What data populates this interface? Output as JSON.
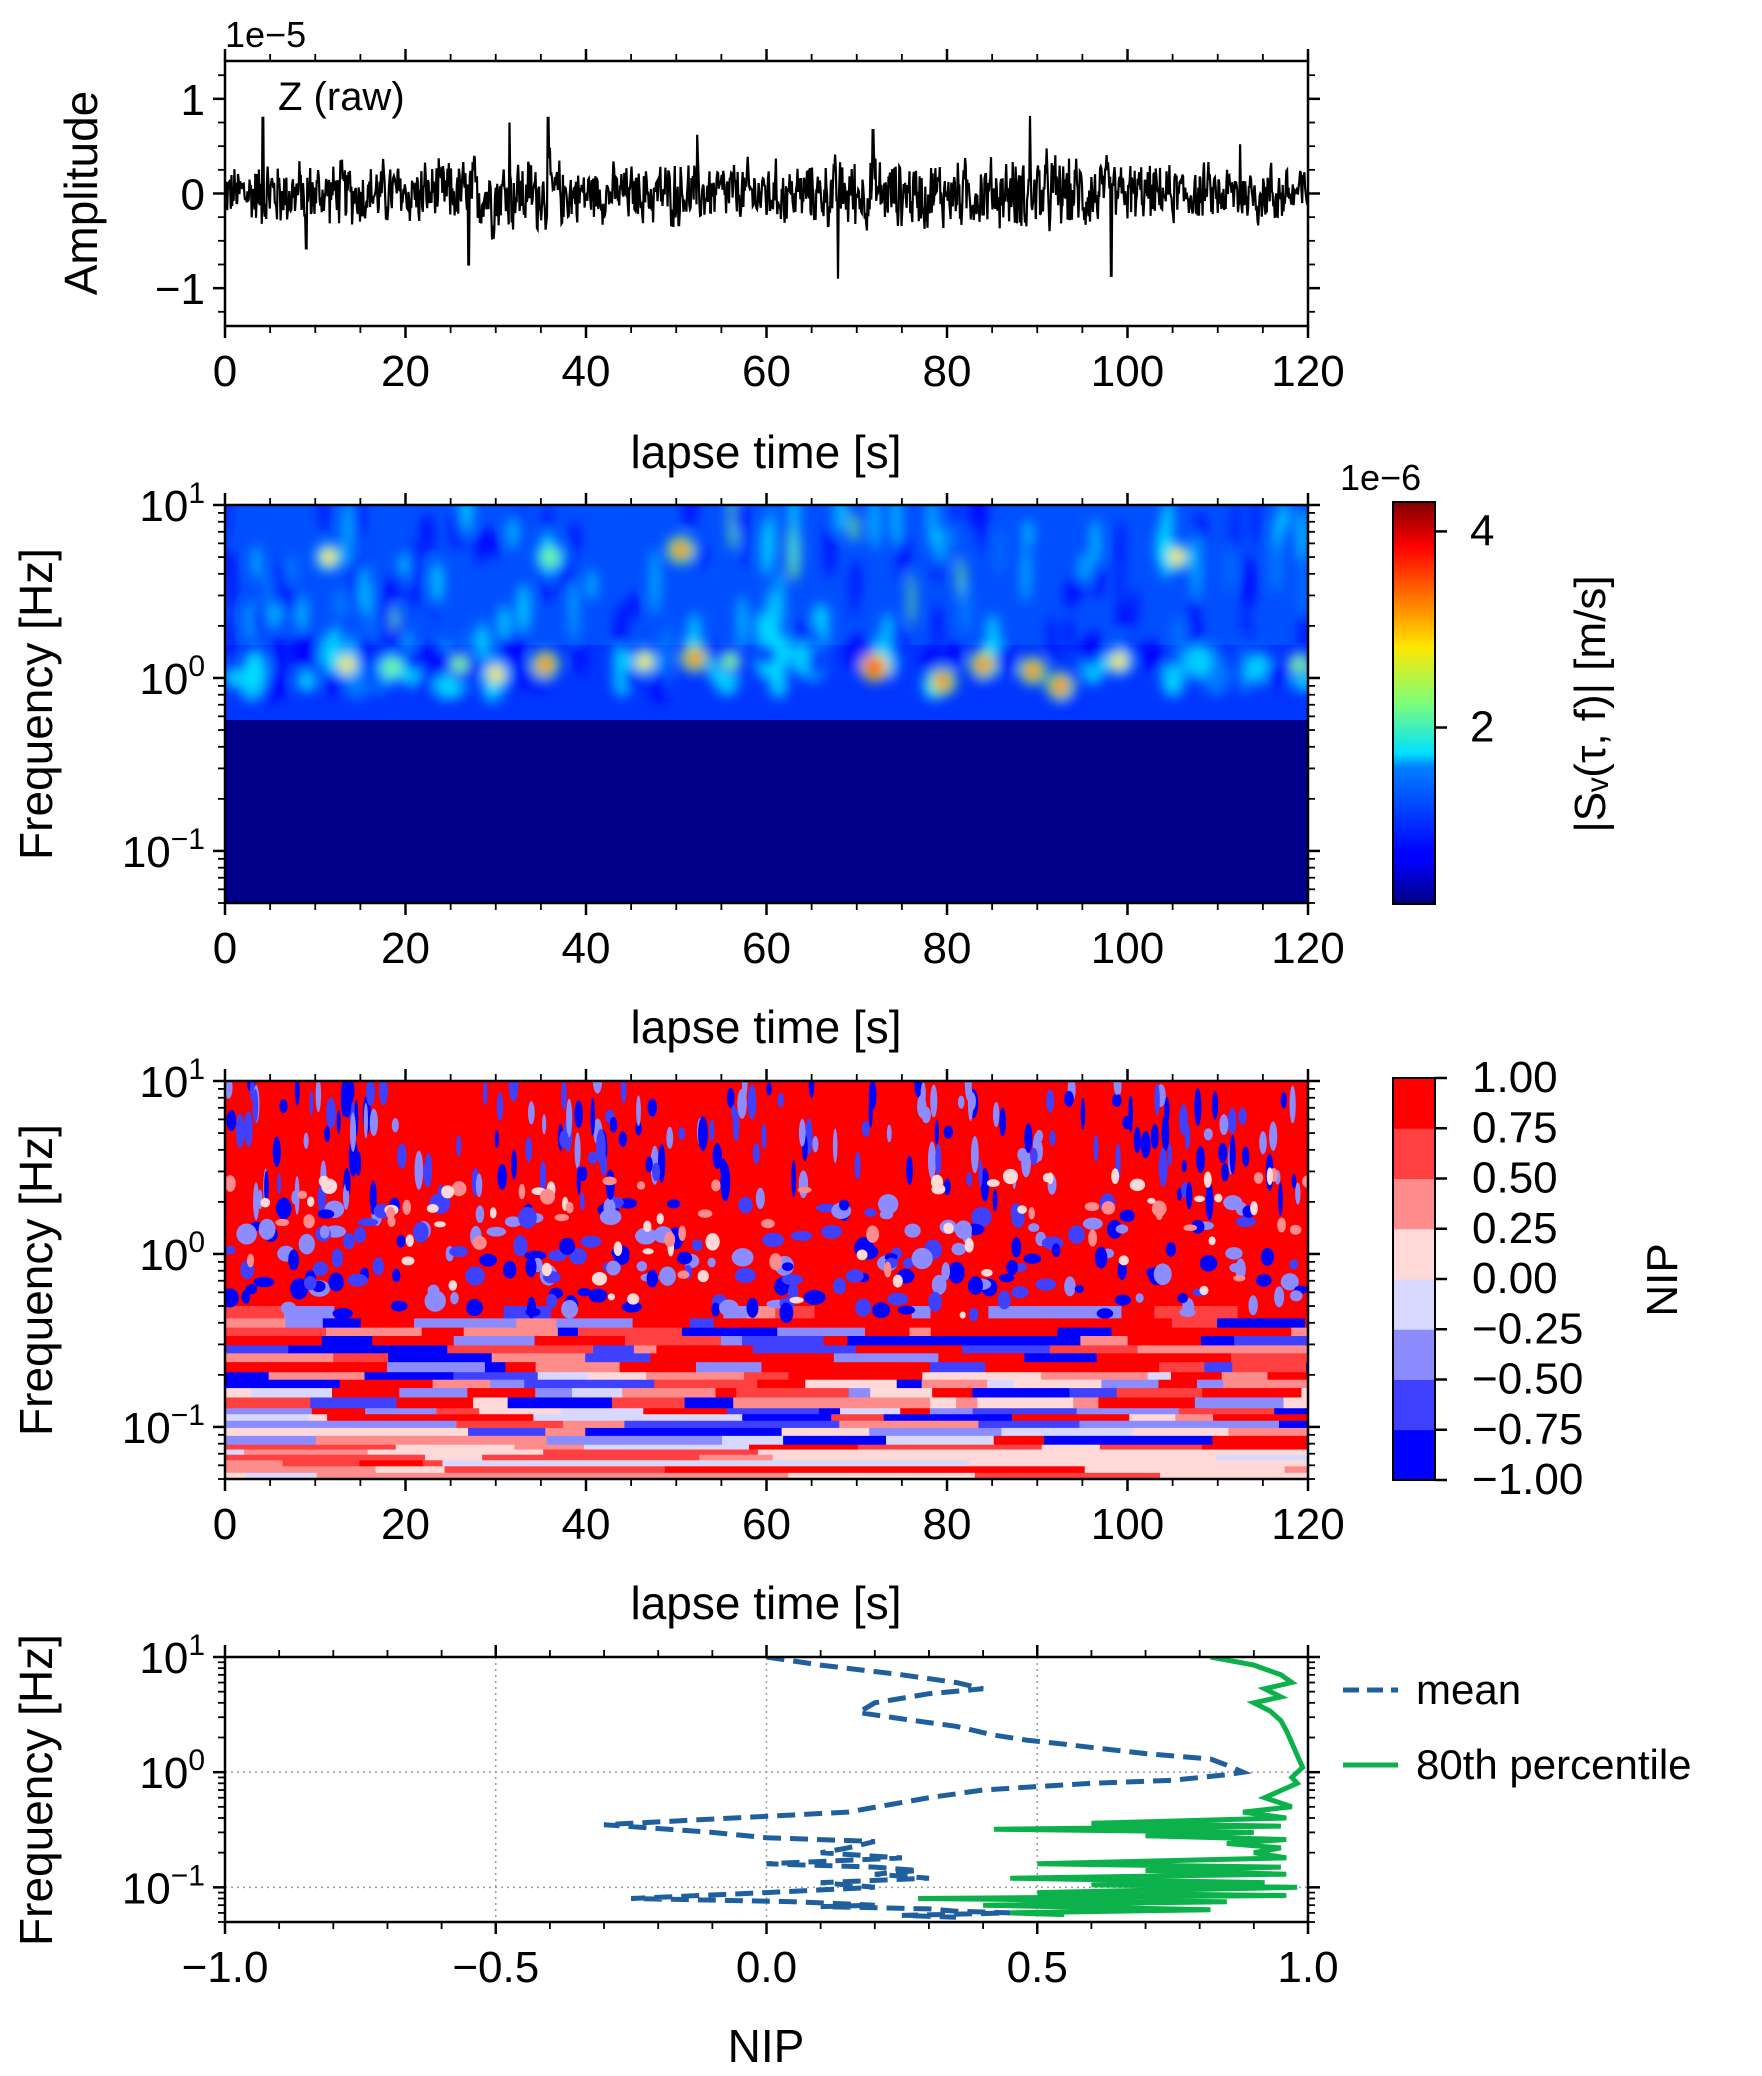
{
  "chart_data": [
    {
      "panel": "a",
      "type": "line",
      "annotation": "Z (raw)",
      "offset_text": "1e−5",
      "ylabel": "Amplitude",
      "xlabel": "lapse time [s]",
      "xlim": [
        0,
        120
      ],
      "ylim": [
        -1.4,
        1.4
      ],
      "xticks": [
        0,
        20,
        40,
        60,
        80,
        100,
        120
      ],
      "yticks": [
        -1,
        0,
        1
      ],
      "xtick_labels": [
        "0",
        "20",
        "40",
        "60",
        "80",
        "100",
        "120"
      ],
      "ytick_labels": [
        "−1",
        "0",
        "1"
      ],
      "line_color": "#000000",
      "envelope": [
        {
          "t": 0,
          "a": 0.45
        },
        {
          "t": 5,
          "a": 0.6
        },
        {
          "t": 10,
          "a": 0.5
        },
        {
          "t": 15,
          "a": 0.55
        },
        {
          "t": 20,
          "a": 0.5
        },
        {
          "t": 25,
          "a": 0.55
        },
        {
          "t": 30,
          "a": 0.65
        },
        {
          "t": 35,
          "a": 0.6
        },
        {
          "t": 40,
          "a": 0.45
        },
        {
          "t": 45,
          "a": 0.45
        },
        {
          "t": 50,
          "a": 0.55
        },
        {
          "t": 55,
          "a": 0.5
        },
        {
          "t": 60,
          "a": 0.5
        },
        {
          "t": 65,
          "a": 0.5
        },
        {
          "t": 70,
          "a": 0.6
        },
        {
          "t": 75,
          "a": 0.55
        },
        {
          "t": 80,
          "a": 0.55
        },
        {
          "t": 85,
          "a": 0.55
        },
        {
          "t": 90,
          "a": 0.65
        },
        {
          "t": 95,
          "a": 0.6
        },
        {
          "t": 100,
          "a": 0.5
        },
        {
          "t": 105,
          "a": 0.45
        },
        {
          "t": 110,
          "a": 0.45
        },
        {
          "t": 115,
          "a": 0.5
        },
        {
          "t": 120,
          "a": 0.5
        }
      ],
      "peaks": [
        {
          "t": 4.2,
          "a": 0.8
        },
        {
          "t": 9.0,
          "a": -0.58
        },
        {
          "t": 27.0,
          "a": -0.75
        },
        {
          "t": 31.5,
          "a": 0.75
        },
        {
          "t": 35.8,
          "a": 0.8
        },
        {
          "t": 52.3,
          "a": 0.62
        },
        {
          "t": 67.9,
          "a": -0.9
        },
        {
          "t": 71.8,
          "a": 0.67
        },
        {
          "t": 89.2,
          "a": 0.82
        },
        {
          "t": 98.2,
          "a": -0.87
        },
        {
          "t": 112.5,
          "a": 0.52
        }
      ]
    },
    {
      "panel": "b",
      "type": "heatmap",
      "xlabel": "lapse time [s]",
      "ylabel": "Frequency [Hz]",
      "xlim": [
        0,
        120
      ],
      "ylim": [
        0.05,
        10
      ],
      "yscale": "log",
      "xticks": [
        0,
        20,
        40,
        60,
        80,
        100,
        120
      ],
      "xtick_labels": [
        "0",
        "20",
        "40",
        "60",
        "80",
        "100",
        "120"
      ],
      "yticks": [
        0.1,
        1,
        10
      ],
      "ytick_labels": [
        {
          "base": "10",
          "exp": "−1"
        },
        {
          "base": "10",
          "exp": "0"
        },
        {
          "base": "10",
          "exp": "1"
        }
      ],
      "colormap": "jet",
      "colorbar": {
        "label": "|Sᵥ(τ, f)| [m/s]",
        "offset_text": "1e−6",
        "range": [
          0.2,
          4.3
        ],
        "ticks": [
          2,
          4
        ],
        "tick_labels": [
          "2",
          "4"
        ]
      },
      "hotspots": [
        {
          "t": 13.5,
          "f": 1.2,
          "v": 3.2
        },
        {
          "t": 18.5,
          "f": 1.15,
          "v": 2.8
        },
        {
          "t": 26.0,
          "f": 1.2,
          "v": 2.6
        },
        {
          "t": 30.0,
          "f": 1.05,
          "v": 3.0
        },
        {
          "t": 35.5,
          "f": 1.2,
          "v": 3.3
        },
        {
          "t": 46.5,
          "f": 1.25,
          "v": 3.2
        },
        {
          "t": 52.0,
          "f": 1.3,
          "v": 3.5
        },
        {
          "t": 56.0,
          "f": 1.25,
          "v": 2.6
        },
        {
          "t": 72.0,
          "f": 1.15,
          "v": 4.2
        },
        {
          "t": 79.5,
          "f": 0.95,
          "v": 3.3
        },
        {
          "t": 84.0,
          "f": 1.2,
          "v": 3.3
        },
        {
          "t": 89.5,
          "f": 1.1,
          "v": 3.6
        },
        {
          "t": 92.5,
          "f": 0.9,
          "v": 3.4
        },
        {
          "t": 99.0,
          "f": 1.25,
          "v": 3.0
        },
        {
          "t": 11.5,
          "f": 5.0,
          "v": 3.0
        },
        {
          "t": 50.5,
          "f": 5.5,
          "v": 3.4
        },
        {
          "t": 105.5,
          "f": 5.0,
          "v": 3.2
        },
        {
          "t": 36.0,
          "f": 5.0,
          "v": 2.8
        },
        {
          "t": 119.0,
          "f": 1.2,
          "v": 2.6
        }
      ]
    },
    {
      "panel": "c",
      "type": "heatmap",
      "xlabel": "lapse time [s]",
      "ylabel": "Frequency [Hz]",
      "xlim": [
        0,
        120
      ],
      "ylim": [
        0.05,
        10
      ],
      "yscale": "log",
      "xticks": [
        0,
        20,
        40,
        60,
        80,
        100,
        120
      ],
      "xtick_labels": [
        "0",
        "20",
        "40",
        "60",
        "80",
        "100",
        "120"
      ],
      "yticks": [
        0.1,
        1,
        10
      ],
      "ytick_labels": [
        {
          "base": "10",
          "exp": "−1"
        },
        {
          "base": "10",
          "exp": "0"
        },
        {
          "base": "10",
          "exp": "1"
        }
      ],
      "colormap": "bwr (8 discrete levels)",
      "colorbar": {
        "label": "NIP",
        "levels": [
          -1.0,
          -0.75,
          -0.5,
          -0.25,
          0.0,
          0.25,
          0.5,
          0.75,
          1.0
        ],
        "tick_labels": [
          "1.00",
          "0.75",
          "0.50",
          "0.25",
          "0.00",
          "−0.25",
          "−0.50",
          "−0.75",
          "−1.00"
        ],
        "colors": [
          "#0000ff",
          "#4040ff",
          "#8c8cff",
          "#d8d8ff",
          "#ffd8d8",
          "#ff8c8c",
          "#ff4040",
          "#ff0000"
        ]
      }
    },
    {
      "panel": "d",
      "type": "line",
      "xlabel": "NIP",
      "ylabel": "Frequency [Hz]",
      "xlim": [
        -1.0,
        1.0
      ],
      "ylim": [
        0.05,
        10
      ],
      "yscale": "log",
      "grid": true,
      "xticks": [
        -1.0,
        -0.5,
        0.0,
        0.5,
        1.0
      ],
      "xtick_labels": [
        "−1.0",
        "−0.5",
        "0.0",
        "0.5",
        "1.0"
      ],
      "yticks": [
        0.1,
        1,
        10
      ],
      "ytick_labels": [
        {
          "base": "10",
          "exp": "−1"
        },
        {
          "base": "10",
          "exp": "0"
        },
        {
          "base": "10",
          "exp": "1"
        }
      ],
      "legend": "outside right",
      "series": [
        {
          "name": "mean",
          "style": "dashed",
          "color": "#1f5f9e",
          "points": [
            [
              0.0,
              10.0
            ],
            [
              0.1,
              8.5
            ],
            [
              0.25,
              7.0
            ],
            [
              0.35,
              6.0
            ],
            [
              0.4,
              5.3
            ],
            [
              0.3,
              4.8
            ],
            [
              0.2,
              4.0
            ],
            [
              0.17,
              3.3
            ],
            [
              0.25,
              2.9
            ],
            [
              0.35,
              2.5
            ],
            [
              0.42,
              2.1
            ],
            [
              0.48,
              1.9
            ],
            [
              0.55,
              1.75
            ],
            [
              0.62,
              1.6
            ],
            [
              0.7,
              1.45
            ],
            [
              0.82,
              1.3
            ],
            [
              0.85,
              1.15
            ],
            [
              0.88,
              1.0
            ],
            [
              0.85,
              0.95
            ],
            [
              0.75,
              0.85
            ],
            [
              0.6,
              0.8
            ],
            [
              0.5,
              0.75
            ],
            [
              0.4,
              0.7
            ],
            [
              0.3,
              0.6
            ],
            [
              0.15,
              0.45
            ],
            [
              -0.3,
              0.35
            ],
            [
              -0.1,
              0.3
            ],
            [
              0.0,
              0.27
            ],
            [
              0.2,
              0.25
            ],
            [
              0.15,
              0.22
            ],
            [
              0.1,
              0.2
            ],
            [
              0.25,
              0.18
            ],
            [
              0.0,
              0.16
            ],
            [
              0.2,
              0.15
            ],
            [
              0.28,
              0.14
            ],
            [
              0.2,
              0.13
            ],
            [
              0.3,
              0.12
            ],
            [
              0.1,
              0.11
            ],
            [
              0.2,
              0.1
            ],
            [
              0.0,
              0.09
            ],
            [
              -0.25,
              0.08
            ],
            [
              0.05,
              0.075
            ],
            [
              0.2,
              0.07
            ],
            [
              0.1,
              0.068
            ],
            [
              0.3,
              0.065
            ],
            [
              0.35,
              0.062
            ],
            [
              0.45,
              0.06
            ],
            [
              0.25,
              0.057
            ],
            [
              0.35,
              0.055
            ]
          ]
        },
        {
          "name": "80th percentile",
          "style": "solid",
          "color": "#0db14b",
          "points": [
            [
              0.82,
              10.0
            ],
            [
              0.9,
              8.5
            ],
            [
              0.95,
              7.0
            ],
            [
              0.97,
              6.0
            ],
            [
              0.92,
              5.3
            ],
            [
              0.95,
              4.5
            ],
            [
              0.9,
              4.0
            ],
            [
              0.93,
              3.4
            ],
            [
              0.95,
              2.8
            ],
            [
              0.96,
              2.3
            ],
            [
              0.97,
              1.8
            ],
            [
              0.98,
              1.4
            ],
            [
              0.99,
              1.1
            ],
            [
              0.97,
              0.9
            ],
            [
              0.98,
              0.8
            ],
            [
              0.92,
              0.6
            ],
            [
              0.97,
              0.5
            ],
            [
              0.88,
              0.45
            ],
            [
              0.96,
              0.4
            ],
            [
              0.6,
              0.36
            ],
            [
              0.95,
              0.34
            ],
            [
              0.42,
              0.32
            ],
            [
              0.9,
              0.3
            ],
            [
              0.7,
              0.28
            ],
            [
              0.96,
              0.26
            ],
            [
              0.85,
              0.24
            ],
            [
              0.95,
              0.22
            ],
            [
              0.9,
              0.2
            ],
            [
              0.96,
              0.18
            ],
            [
              0.5,
              0.16
            ],
            [
              0.95,
              0.15
            ],
            [
              0.7,
              0.14
            ],
            [
              0.96,
              0.13
            ],
            [
              0.45,
              0.12
            ],
            [
              0.92,
              0.11
            ],
            [
              0.6,
              0.105
            ],
            [
              0.98,
              0.1
            ],
            [
              0.5,
              0.09
            ],
            [
              0.96,
              0.085
            ],
            [
              0.28,
              0.08
            ],
            [
              0.85,
              0.075
            ],
            [
              0.4,
              0.07
            ],
            [
              0.6,
              0.067
            ],
            [
              0.82,
              0.064
            ],
            [
              0.45,
              0.06
            ],
            [
              0.55,
              0.058
            ]
          ]
        }
      ]
    }
  ]
}
